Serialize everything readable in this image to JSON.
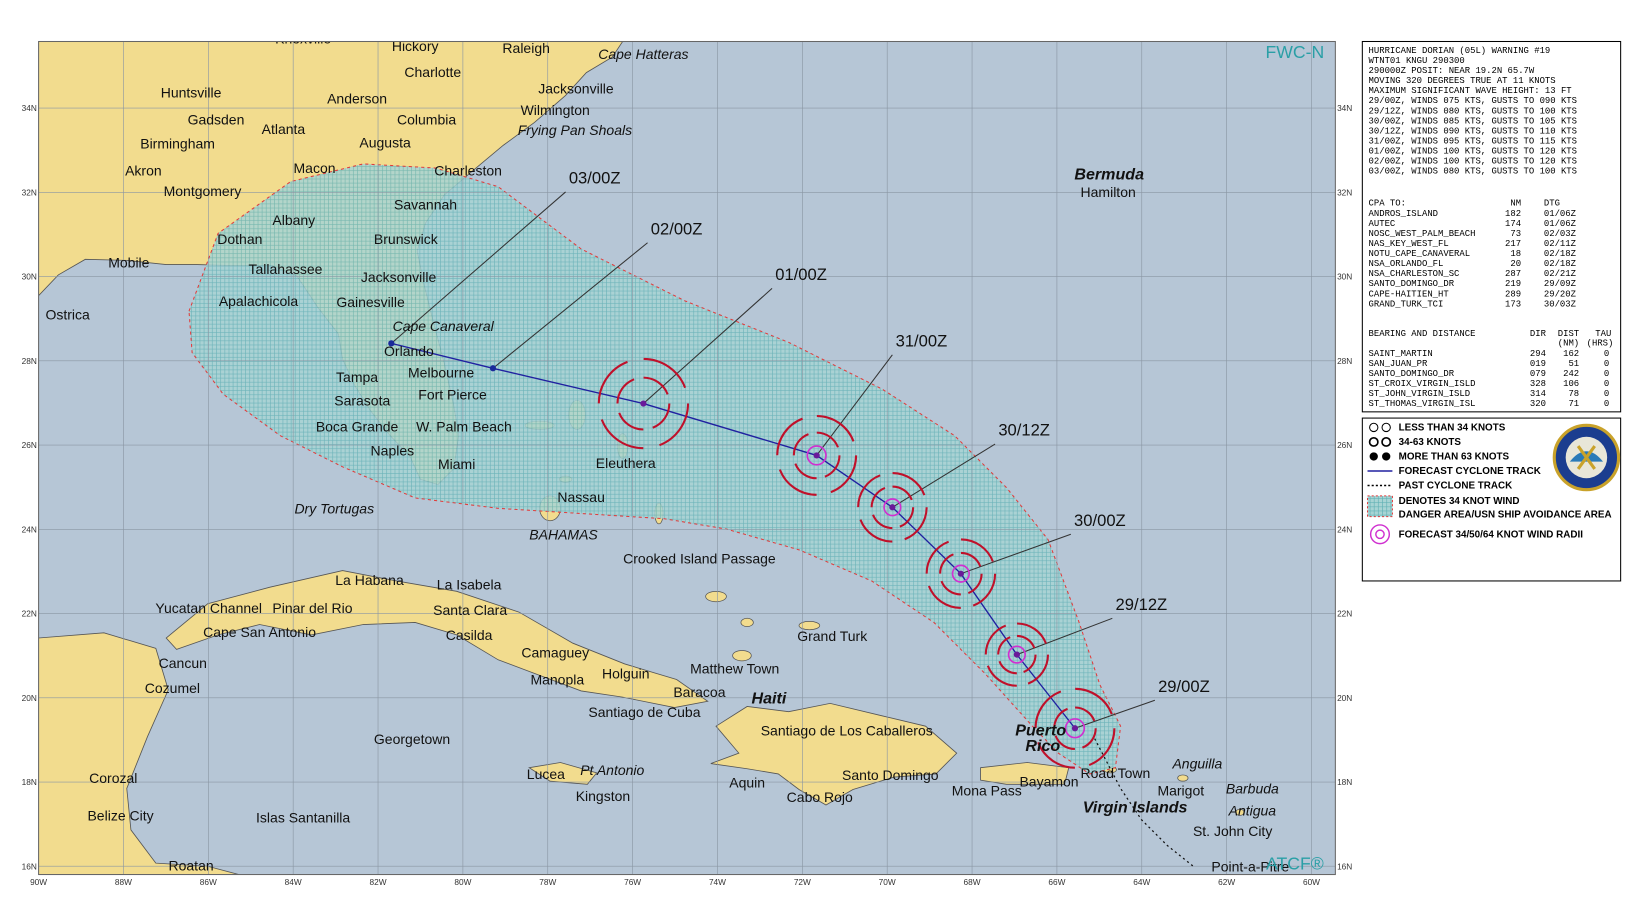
{
  "header": {
    "center": "FWC-N",
    "footer": "ATCF®"
  },
  "lat_labels": [
    "16N",
    "18N",
    "20N",
    "22N",
    "24N",
    "26N",
    "28N",
    "30N",
    "32N",
    "34N"
  ],
  "lon_labels": [
    "90W",
    "88W",
    "86W",
    "84W",
    "82W",
    "80W",
    "78W",
    "76W",
    "74W",
    "72W",
    "70W",
    "68W",
    "66W",
    "64W",
    "62W",
    "60W"
  ],
  "places": [
    "Knoxville",
    "Hickory",
    "Raleigh",
    "Cape Hatteras",
    "Charlotte",
    "Jacksonville",
    "Huntsville",
    "Anderson",
    "Columbia",
    "Wilmington",
    "Frying Pan Shoals",
    "Gadsden",
    "Birmingham",
    "Atlanta",
    "Augusta",
    "Akron",
    "Macon",
    "Charleston",
    "Montgomery",
    "Savannah",
    "Albany",
    "Dothan",
    "Brunswick",
    "Mobile",
    "Tallahassee",
    "Jacksonville",
    "Apalachicola",
    "Gainesville",
    "Ostrica",
    "Cape Canaveral",
    "Orlando",
    "Tampa",
    "Melbourne",
    "Sarasota",
    "Fort Pierce",
    "Boca Grande",
    "W. Palm Beach",
    "Naples",
    "Miami",
    "Eleuthera",
    "Nassau",
    "Dry Tortugas",
    "BAHAMAS",
    "Crooked Island Passage",
    "La Habana",
    "La Isabela",
    "Yucatan Channel",
    "Pinar del Rio",
    "Santa Clara",
    "Cape San Antonio",
    "Casilda",
    "Grand Turk",
    "Camaguey",
    "Cancun",
    "Matthew Town",
    "Manopla",
    "Holguin",
    "Baracoa",
    "Cozumel",
    "Haiti",
    "Santiago de Cuba",
    "Santiago de Los Caballeros",
    "Georgetown",
    "Puerto",
    "Rico",
    "Anguilla",
    "Pt Antonio",
    "Road Town",
    "Lucea",
    "Santo Domingo",
    "Corozal",
    "Aquin",
    "Bayamon",
    "Mona Pass",
    "Marigot",
    "Barbuda",
    "Kingston",
    "Cabo Rojo",
    "Virgin Islands",
    "Antigua",
    "Belize City",
    "Islas Santanilla",
    "St. John City",
    "Roatan",
    "Point-a-Pitre",
    "Bermuda",
    "Hamilton"
  ],
  "forecast_times": [
    "29/00Z",
    "29/12Z",
    "30/00Z",
    "30/12Z",
    "31/00Z",
    "01/00Z",
    "02/00Z",
    "03/00Z"
  ],
  "warning": {
    "lines": [
      "HURRICANE DORIAN (05L) WARNING #19",
      "WTNT01 KNGU 290300",
      "290000Z POSIT: NEAR 19.2N 65.7W",
      "MOVING 320 DEGREES TRUE AT 11 KNOTS",
      "MAXIMUM SIGNIFICANT WAVE HEIGHT: 13 FT",
      "29/00Z, WINDS 075 KTS, GUSTS TO 090 KTS",
      "29/12Z, WINDS 080 KTS, GUSTS TO 100 KTS",
      "30/00Z, WINDS 085 KTS, GUSTS TO 105 KTS",
      "30/12Z, WINDS 090 KTS, GUSTS TO 110 KTS",
      "31/00Z, WINDS 095 KTS, GUSTS TO 115 KTS",
      "01/00Z, WINDS 100 KTS, GUSTS TO 120 KTS",
      "02/00Z, WINDS 100 KTS, GUSTS TO 120 KTS",
      "03/00Z, WINDS 080 KTS, GUSTS TO 100 KTS"
    ]
  },
  "cpa": {
    "header": [
      "CPA TO:",
      "NM",
      "DTG"
    ],
    "rows": [
      [
        "ANDROS_ISLAND",
        "182",
        "01/06Z"
      ],
      [
        "AUTEC",
        "174",
        "01/06Z"
      ],
      [
        "NOSC_WEST_PALM_BEACH",
        "73",
        "02/03Z"
      ],
      [
        "NAS_KEY_WEST_FL",
        "217",
        "02/11Z"
      ],
      [
        "NOTU_CAPE_CANAVERAL",
        "18",
        "02/18Z"
      ],
      [
        "NSA_ORLANDO_FL",
        "20",
        "02/18Z"
      ],
      [
        "NSA_CHARLESTON_SC",
        "287",
        "02/21Z"
      ],
      [
        "SANTO_DOMINGO_DR",
        "219",
        "29/09Z"
      ],
      [
        "CAPE-HAITIEN_HT",
        "289",
        "29/20Z"
      ],
      [
        "GRAND_TURK_TCI",
        "173",
        "30/03Z"
      ]
    ]
  },
  "bearing": {
    "header": [
      "BEARING AND DISTANCE",
      "DIR",
      "DIST",
      "TAU"
    ],
    "units": [
      "(NM)",
      "(HRS)"
    ],
    "rows": [
      [
        "SAINT_MARTIN",
        "294",
        "162",
        "0"
      ],
      [
        "SAN_JUAN_PR",
        "019",
        "51",
        "0"
      ],
      [
        "SANTO_DOMINGO_DR",
        "079",
        "242",
        "0"
      ],
      [
        "ST_CROIX_VIRGIN_ISLD",
        "328",
        "106",
        "0"
      ],
      [
        "ST_JOHN_VIRGIN_ISLD",
        "314",
        "78",
        "0"
      ],
      [
        "ST_THOMAS_VIRGIN_ISL",
        "320",
        "71",
        "0"
      ]
    ]
  },
  "legend": [
    "LESS THAN 34 KNOTS",
    "34-63 KNOTS",
    "MORE THAN 63 KNOTS",
    "FORECAST CYCLONE TRACK",
    "PAST CYCLONE TRACK",
    "DENOTES 34 KNOT WIND",
    "DANGER AREA/USN SHIP AVOIDANCE AREA",
    "FORECAST 34/50/64 KNOT WIND RADII"
  ]
}
